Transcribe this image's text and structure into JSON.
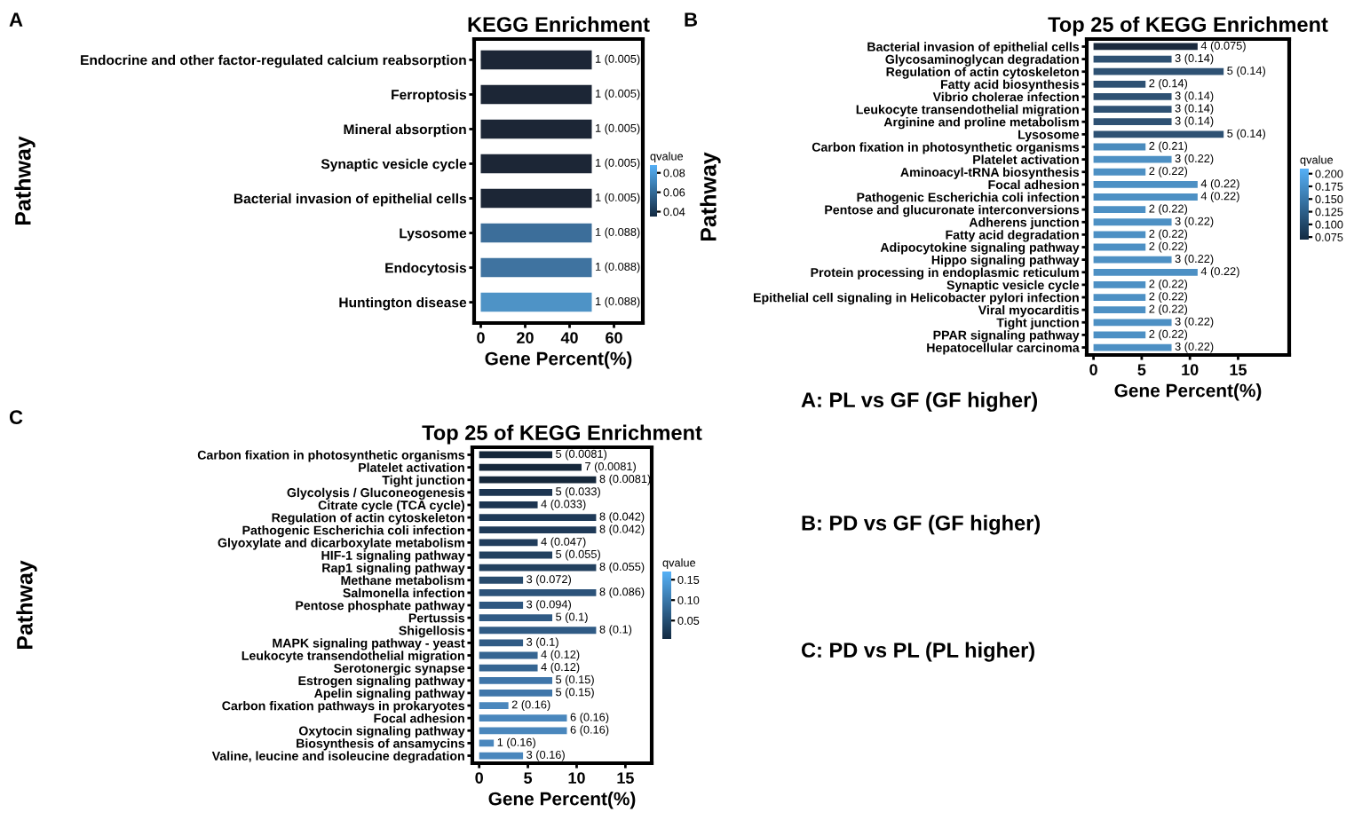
{
  "chart_data": [
    {
      "type": "bar",
      "orientation": "horizontal",
      "title": "KEGG Enrichment",
      "xlabel": "Gene Percent(%)",
      "ylabel": "Pathway",
      "categories": [
        "Endocrine and other factor-regulated calcium reabsorption",
        "Ferroptosis",
        "Mineral absorption",
        "Synaptic vesicle cycle",
        "Bacterial invasion of epithelial cells",
        "Lysosome",
        "Endocytosis",
        "Huntington disease"
      ],
      "values": [
        50,
        50,
        50,
        50,
        50,
        50,
        50,
        50
      ],
      "colors": [
        "#1c2636",
        "#1c2636",
        "#1c2636",
        "#1c2636",
        "#1c2636",
        "#3c6e9a",
        "#3f73a0",
        "#4e93c6"
      ],
      "annotations": [
        "A",
        {
          "text": "1 (0.005)",
          "x": 50,
          "y": "Endocrine and other factor-regulated calcium reabsorption"
        },
        {
          "text": "1 (0.005)",
          "x": 50,
          "y": "Ferroptosis"
        },
        {
          "text": "1 (0.005)",
          "x": 50,
          "y": "Mineral absorption"
        },
        {
          "text": "1 (0.005)",
          "x": 50,
          "y": "Synaptic vesicle cycle"
        },
        {
          "text": "1 (0.005)",
          "x": 50,
          "y": "Bacterial invasion of epithelial cells"
        },
        {
          "text": "1 (0.088)",
          "x": 50,
          "y": "Lysosome"
        },
        {
          "text": "1 (0.088)",
          "x": 50,
          "y": "Endocytosis"
        },
        {
          "text": "1 (0.088)",
          "x": 50,
          "y": "Huntington disease"
        }
      ],
      "xlim": [
        -3,
        73
      ],
      "xticks": [
        0,
        20,
        40,
        60
      ],
      "clabel": "qvalue",
      "clim": [
        0.035,
        0.088
      ],
      "cticks": [
        {
          "value": 0.04,
          "label": "0.04"
        },
        {
          "value": 0.06,
          "label": "0.06"
        },
        {
          "value": 0.08,
          "label": "0.08"
        }
      ],
      "grid": false
    },
    {
      "type": "bar",
      "orientation": "horizontal",
      "title": "Top 25 of KEGG Enrichment",
      "xlabel": "Gene Percent(%)",
      "ylabel": "Pathway",
      "categories": [
        "Bacterial invasion of epithelial cells",
        "Glycosaminoglycan degradation",
        "Regulation of actin cytoskeleton",
        "Fatty acid biosynthesis",
        "Vibrio cholerae infection",
        "Leukocyte transendothelial migration",
        "Arginine and proline metabolism",
        "Lysosome",
        "Carbon fixation in photosynthetic organisms",
        "Platelet activation",
        "Aminoacyl-tRNA biosynthesis",
        "Focal adhesion",
        "Pathogenic Escherichia coli infection",
        "Pentose and glucuronate interconversions",
        "Adherens junction",
        "Fatty acid degradation",
        "Adipocytokine signaling pathway",
        "Hippo signaling pathway",
        "Protein processing in endoplasmic reticulum",
        "Synaptic vesicle cycle",
        "Epithelial cell signaling in Helicobacter pylori infection",
        "Viral myocarditis",
        "Tight junction",
        "PPAR signaling pathway",
        "Hepatocellular carcinoma"
      ],
      "values": [
        10.8,
        8.1,
        13.5,
        5.4,
        8.1,
        8.1,
        8.1,
        13.5,
        5.4,
        8.1,
        5.4,
        10.8,
        10.8,
        5.4,
        8.1,
        5.4,
        5.4,
        8.1,
        10.8,
        5.4,
        5.4,
        5.4,
        8.1,
        5.4,
        8.1
      ],
      "colors": [
        "#1b2a3d",
        "#2e5173",
        "#2e5173",
        "#2e5173",
        "#2e5173",
        "#2e5173",
        "#2e5173",
        "#2e5173",
        "#4a8bbd",
        "#4d90c4",
        "#4d90c4",
        "#4d90c4",
        "#4d90c4",
        "#4d90c4",
        "#4d90c4",
        "#4d90c4",
        "#4d90c4",
        "#4d90c4",
        "#4d90c4",
        "#4d90c4",
        "#4d90c4",
        "#4d90c4",
        "#4d90c4",
        "#4d90c4",
        "#4d90c4"
      ],
      "annotations": [
        "B",
        {
          "text": "4 (0.075)",
          "x": 10.8,
          "y": "Bacterial invasion of epithelial cells"
        },
        {
          "text": "3 (0.14)",
          "x": 8.1,
          "y": "Glycosaminoglycan degradation"
        },
        {
          "text": "5 (0.14)",
          "x": 13.5,
          "y": "Regulation of actin cytoskeleton"
        },
        {
          "text": "2 (0.14)",
          "x": 5.4,
          "y": "Fatty acid biosynthesis"
        },
        {
          "text": "3 (0.14)",
          "x": 8.1,
          "y": "Vibrio cholerae infection"
        },
        {
          "text": "3 (0.14)",
          "x": 8.1,
          "y": "Leukocyte transendothelial migration"
        },
        {
          "text": "3 (0.14)",
          "x": 8.1,
          "y": "Arginine and proline metabolism"
        },
        {
          "text": "5 (0.14)",
          "x": 13.5,
          "y": "Lysosome"
        },
        {
          "text": "2 (0.21)",
          "x": 5.4,
          "y": "Carbon fixation in photosynthetic organisms"
        },
        {
          "text": "3 (0.22)",
          "x": 8.1,
          "y": "Platelet activation"
        },
        {
          "text": "2 (0.22)",
          "x": 5.4,
          "y": "Aminoacyl-tRNA biosynthesis"
        },
        {
          "text": "4 (0.22)",
          "x": 10.8,
          "y": "Focal adhesion"
        },
        {
          "text": "4 (0.22)",
          "x": 10.8,
          "y": "Pathogenic Escherichia coli infection"
        },
        {
          "text": "2 (0.22)",
          "x": 5.4,
          "y": "Pentose and glucuronate interconversions"
        },
        {
          "text": "3 (0.22)",
          "x": 8.1,
          "y": "Adherens junction"
        },
        {
          "text": "2 (0.22)",
          "x": 5.4,
          "y": "Fatty acid degradation"
        },
        {
          "text": "2 (0.22)",
          "x": 5.4,
          "y": "Adipocytokine signaling pathway"
        },
        {
          "text": "3 (0.22)",
          "x": 8.1,
          "y": "Hippo signaling pathway"
        },
        {
          "text": "4 (0.22)",
          "x": 10.8,
          "y": "Protein processing in endoplasmic reticulum"
        },
        {
          "text": "2 (0.22)",
          "x": 5.4,
          "y": "Synaptic vesicle cycle"
        },
        {
          "text": "2 (0.22)",
          "x": 5.4,
          "y": "Epithelial cell signaling in Helicobacter pylori infection"
        },
        {
          "text": "2 (0.22)",
          "x": 5.4,
          "y": "Viral myocarditis"
        },
        {
          "text": "3 (0.22)",
          "x": 8.1,
          "y": "Tight junction"
        },
        {
          "text": "2 (0.22)",
          "x": 5.4,
          "y": "PPAR signaling pathway"
        },
        {
          "text": "3 (0.22)",
          "x": 8.1,
          "y": "Hepatocellular carcinoma"
        }
      ],
      "xlim": [
        -0.7,
        20.3
      ],
      "xticks": [
        0,
        5,
        10,
        15
      ],
      "clabel": "qvalue",
      "clim": [
        0.07,
        0.21
      ],
      "cticks": [
        {
          "value": 0.075,
          "label": "0.075"
        },
        {
          "value": 0.1,
          "label": "0.100"
        },
        {
          "value": 0.125,
          "label": "0.125"
        },
        {
          "value": 0.15,
          "label": "0.150"
        },
        {
          "value": 0.175,
          "label": "0.175"
        },
        {
          "value": 0.2,
          "label": "0.200"
        }
      ],
      "grid": false
    },
    {
      "type": "bar",
      "orientation": "horizontal",
      "title": "Top 25 of KEGG Enrichment",
      "xlabel": "Gene Percent(%)",
      "ylabel": "Pathway",
      "categories": [
        "Carbon fixation in photosynthetic organisms",
        "Platelet activation",
        "Tight junction",
        "Glycolysis / Gluconeogenesis",
        "Citrate cycle (TCA cycle)",
        "Regulation of actin cytoskeleton",
        "Pathogenic Escherichia coli infection",
        "Glyoxylate and dicarboxylate metabolism",
        "HIF-1 signaling pathway",
        "Rap1 signaling pathway",
        "Methane metabolism",
        "Salmonella infection",
        "Pentose phosphate pathway",
        "Pertussis",
        "Shigellosis",
        "MAPK signaling pathway - yeast",
        "Leukocyte transendothelial migration",
        "Serotonergic synapse",
        "Estrogen signaling pathway",
        "Apelin signaling pathway",
        "Carbon fixation pathways in prokaryotes",
        "Focal adhesion",
        "Oxytocin signaling pathway",
        "Biosynthesis of ansamycins",
        "Valine, leucine and isoleucine degradation"
      ],
      "values": [
        7.5,
        10.5,
        12,
        7.5,
        6,
        12,
        12,
        6,
        7.5,
        12,
        4.5,
        12,
        4.5,
        7.5,
        12,
        4.5,
        6,
        6,
        7.5,
        7.5,
        3,
        9,
        9,
        1.5,
        4.5
      ],
      "colors": [
        "#16283b",
        "#16283b",
        "#16283b",
        "#1d3551",
        "#1d3551",
        "#1f3a58",
        "#1f3a58",
        "#213d5c",
        "#23415f",
        "#23415f",
        "#284b6d",
        "#2c537a",
        "#2e5780",
        "#305b85",
        "#305b85",
        "#305b85",
        "#356592",
        "#356592",
        "#3f76aa",
        "#3f76aa",
        "#4a87bd",
        "#4a87bd",
        "#4a87bd",
        "#4a87bd",
        "#4a87bd"
      ],
      "annotations": [
        "C",
        {
          "text": "5 (0.0081)",
          "x": 7.5,
          "y": "Carbon fixation in photosynthetic organisms"
        },
        {
          "text": "7 (0.0081)",
          "x": 10.5,
          "y": "Platelet activation"
        },
        {
          "text": "8 (0.0081)",
          "x": 12,
          "y": "Tight junction"
        },
        {
          "text": "5 (0.033)",
          "x": 7.5,
          "y": "Glycolysis / Gluconeogenesis"
        },
        {
          "text": "4 (0.033)",
          "x": 6,
          "y": "Citrate cycle (TCA cycle)"
        },
        {
          "text": "8 (0.042)",
          "x": 12,
          "y": "Regulation of actin cytoskeleton"
        },
        {
          "text": "8 (0.042)",
          "x": 12,
          "y": "Pathogenic Escherichia coli infection"
        },
        {
          "text": "4 (0.047)",
          "x": 6,
          "y": "Glyoxylate and dicarboxylate metabolism"
        },
        {
          "text": "5 (0.055)",
          "x": 7.5,
          "y": "HIF-1 signaling pathway"
        },
        {
          "text": "8 (0.055)",
          "x": 12,
          "y": "Rap1 signaling pathway"
        },
        {
          "text": "3 (0.072)",
          "x": 4.5,
          "y": "Methane metabolism"
        },
        {
          "text": "8 (0.086)",
          "x": 12,
          "y": "Salmonella infection"
        },
        {
          "text": "3 (0.094)",
          "x": 4.5,
          "y": "Pentose phosphate pathway"
        },
        {
          "text": "5 (0.1)",
          "x": 7.5,
          "y": "Pertussis"
        },
        {
          "text": "8 (0.1)",
          "x": 12,
          "y": "Shigellosis"
        },
        {
          "text": "3 (0.1)",
          "x": 4.5,
          "y": "MAPK signaling pathway - yeast"
        },
        {
          "text": "4 (0.12)",
          "x": 6,
          "y": "Leukocyte transendothelial migration"
        },
        {
          "text": "4 (0.12)",
          "x": 6,
          "y": "Serotonergic synapse"
        },
        {
          "text": "5 (0.15)",
          "x": 7.5,
          "y": "Estrogen signaling pathway"
        },
        {
          "text": "5 (0.15)",
          "x": 7.5,
          "y": "Apelin signaling pathway"
        },
        {
          "text": "2 (0.16)",
          "x": 3,
          "y": "Carbon fixation pathways in prokaryotes"
        },
        {
          "text": "6 (0.16)",
          "x": 9,
          "y": "Focal adhesion"
        },
        {
          "text": "6 (0.16)",
          "x": 9,
          "y": "Oxytocin signaling pathway"
        },
        {
          "text": "1 (0.16)",
          "x": 1.5,
          "y": "Biosynthesis of ansamycins"
        },
        {
          "text": "3 (0.16)",
          "x": 4.5,
          "y": "Valine, leucine and isoleucine degradation"
        }
      ],
      "xlim": [
        -0.7,
        17.7
      ],
      "xticks": [
        0,
        5,
        10,
        15
      ],
      "clabel": "qvalue",
      "clim": [
        0.005,
        0.17
      ],
      "cticks": [
        {
          "value": 0.05,
          "label": "0.05"
        },
        {
          "value": 0.1,
          "label": "0.10"
        },
        {
          "value": 0.15,
          "label": "0.15"
        }
      ],
      "grid": false
    },
    {
      "type": "other",
      "annotations": [
        "A: PL vs GF (GF higher)",
        "B: PD vs GF (GF higher)",
        "C: PD vs PL (PL higher)"
      ]
    }
  ]
}
